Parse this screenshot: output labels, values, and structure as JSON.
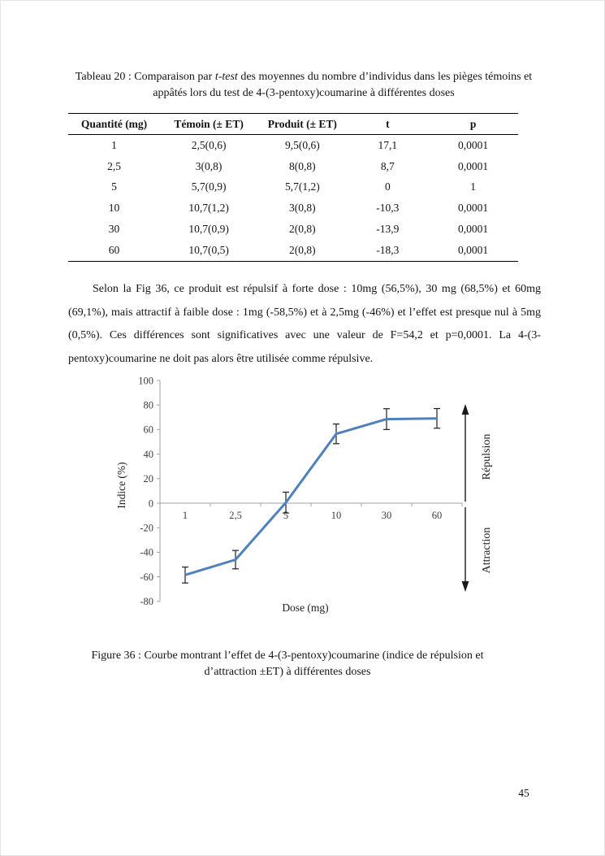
{
  "page": {
    "number": "45"
  },
  "table_block": {
    "title": {
      "prefix": "Tableau 20 : Comparaison par ",
      "italic": "t-test",
      "suffix": " des moyennes du nombre d’individus dans les pièges témoins et appâtés lors du test de 4-(3-pentoxy)coumarine à différentes doses"
    },
    "columns": [
      "Quantité (mg)",
      "Témoin (± ET)",
      "Produit (± ET)",
      "t",
      "p"
    ],
    "rows": [
      [
        "1",
        "2,5(0,6)",
        "9,5(0,6)",
        "17,1",
        "0,0001"
      ],
      [
        "2,5",
        "3(0,8)",
        "8(0,8)",
        "8,7",
        "0,0001"
      ],
      [
        "5",
        "5,7(0,9)",
        "5,7(1,2)",
        "0",
        "1"
      ],
      [
        "10",
        "10,7(1,2)",
        "3(0,8)",
        "-10,3",
        "0,0001"
      ],
      [
        "30",
        "10,7(0,9)",
        "2(0,8)",
        "-13,9",
        "0,0001"
      ],
      [
        "60",
        "10,7(0,5)",
        "2(0,8)",
        "-18,3",
        "0,0001"
      ]
    ]
  },
  "paragraph": "Selon la Fig 36, ce produit est répulsif à forte dose : 10mg (56,5%), 30 mg (68,5%) et 60mg (69,1%), mais attractif à faible dose : 1mg (-58,5%) et à 2,5mg (-46%) et l’effet est presque nul à 5mg (0,5%). Ces différences sont significatives avec une valeur de F=54,2 et p=0,0001. La 4-(3-pentoxy)coumarine ne doit pas alors être utilisée comme répulsive.",
  "chart_data": {
    "type": "line",
    "categories": [
      "1",
      "2,5",
      "5",
      "10",
      "30",
      "60"
    ],
    "values": [
      -58.5,
      -46,
      0.5,
      56.5,
      68.5,
      69.1
    ],
    "errors": [
      6.5,
      7.5,
      8.5,
      8,
      8.5,
      8
    ],
    "title": "",
    "xlabel": "Dose (mg)",
    "ylabel": "Indice (%)",
    "ylim": [
      -80,
      100
    ],
    "ytick_step": 20,
    "grid": false,
    "legend": false,
    "line_color": "#4F81BD",
    "error_bar_color": "#1f1f1f",
    "axis_color": "#a3a3a3",
    "annotations": {
      "up": "Répulsion",
      "down": "Attraction"
    }
  },
  "figure_caption": "Figure 36 : Courbe montrant l’effet de 4-(3-pentoxy)coumarine (indice de répulsion et d’attraction ±ET) à différentes doses"
}
